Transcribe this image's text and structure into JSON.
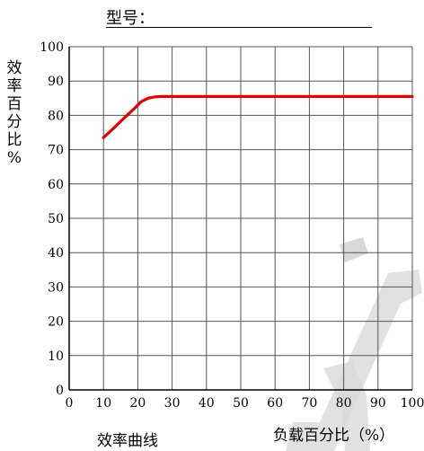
{
  "header": {
    "model_label": "型号："
  },
  "caption": "效率曲线",
  "colors": {
    "curve": "#e00000",
    "grid": "#555555",
    "watermark": "#d9d9d9"
  },
  "chart_data": {
    "type": "line",
    "title": "",
    "xlabel": "负载百分比（%）",
    "ylabel": "效率百分比%",
    "xlim": [
      0,
      100
    ],
    "ylim": [
      0,
      100
    ],
    "x_ticks": [
      0,
      10,
      20,
      30,
      40,
      50,
      60,
      70,
      80,
      90,
      100
    ],
    "y_ticks": [
      0,
      10,
      20,
      30,
      40,
      50,
      60,
      70,
      80,
      90,
      100
    ],
    "grid": true,
    "series": [
      {
        "x": [
          10,
          13,
          16,
          19,
          21,
          23,
          25,
          27,
          30,
          40,
          50,
          60,
          70,
          80,
          90,
          100
        ],
        "y": [
          73.5,
          76.3,
          79.2,
          82,
          84,
          85,
          85.4,
          85.5,
          85.5,
          85.5,
          85.5,
          85.5,
          85.5,
          85.5,
          85.5,
          85.5
        ]
      }
    ]
  }
}
